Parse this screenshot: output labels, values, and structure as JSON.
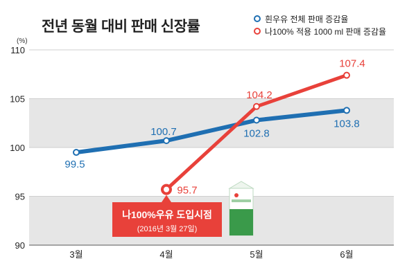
{
  "chart_data": {
    "type": "line",
    "title": "전년 동월 대비 판매 신장률",
    "yunit": "(%)",
    "categories": [
      "3월",
      "4월",
      "5월",
      "6월"
    ],
    "ylim": [
      90,
      110
    ],
    "yticks": [
      90,
      95,
      100,
      105,
      110
    ],
    "grid": "alternating bands",
    "legend_position": "top-right",
    "series": [
      {
        "name": "흰우유 전체 판매 증감율",
        "color": "#1f6fb2",
        "values": [
          99.5,
          100.7,
          102.8,
          103.8
        ],
        "labels": [
          "99.5",
          "100.7",
          "102.8",
          "103.8"
        ]
      },
      {
        "name": "나100% 적용 1000 ml 판매 증감율",
        "color": "#e8413a",
        "values": [
          null,
          95.7,
          104.2,
          107.4
        ],
        "labels": [
          "",
          "95.7",
          "104.2",
          "107.4"
        ]
      }
    ],
    "annotation": {
      "category": "4월",
      "title": "나100%우유 도입시점",
      "subtitle": "(2016년 3월 27일)"
    }
  }
}
